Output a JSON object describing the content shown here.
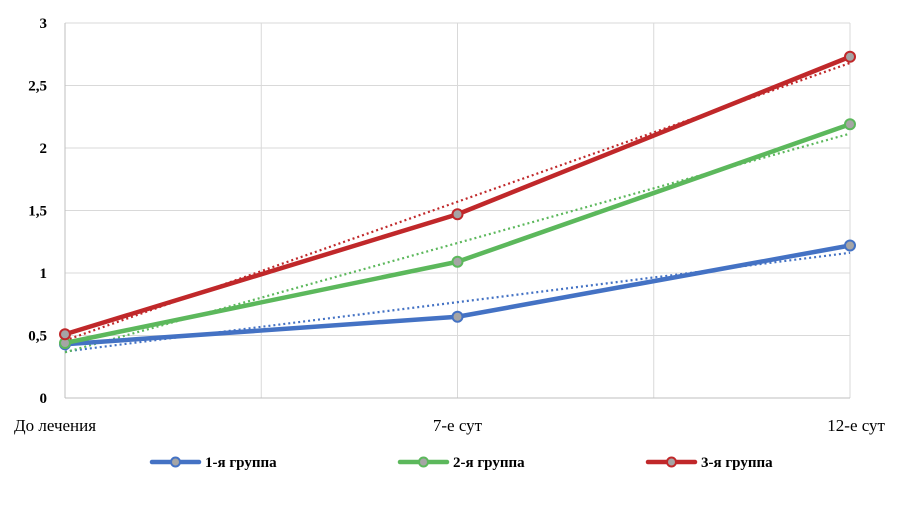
{
  "chart_data": {
    "type": "line",
    "categories": [
      "До лечения",
      "7-е сут",
      "12-е сут"
    ],
    "series": [
      {
        "name": "1-я группа",
        "values": [
          0.43,
          0.65,
          1.22
        ],
        "color": "#4472c4"
      },
      {
        "name": "2-я группа",
        "values": [
          0.44,
          1.09,
          2.19
        ],
        "color": "#5cb85c"
      },
      {
        "name": "3-я группа",
        "values": [
          0.51,
          1.47,
          2.73
        ],
        "color": "#c0282a"
      }
    ],
    "trendlines": {
      "style": "dotted",
      "type": "linear"
    },
    "y_ticks": [
      "0",
      "0,5",
      "1",
      "1,5",
      "2",
      "2,5",
      "3"
    ],
    "ylim": [
      0,
      3
    ],
    "grid": true,
    "legend": "bottom",
    "title": "",
    "xlabel": "",
    "ylabel": ""
  }
}
